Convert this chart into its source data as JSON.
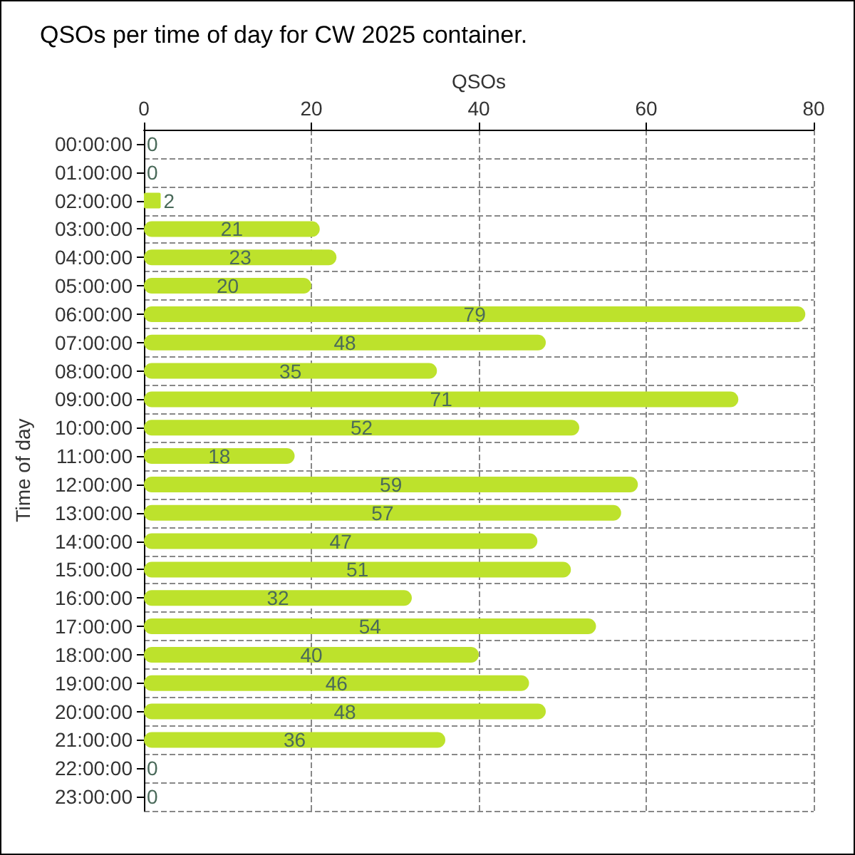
{
  "chart_data": {
    "type": "bar",
    "orientation": "horizontal",
    "title": "QSOs per time of day for CW 2025 container.",
    "xlabel": "QSOs",
    "ylabel": "Time of day",
    "categories": [
      "00:00:00",
      "01:00:00",
      "02:00:00",
      "03:00:00",
      "04:00:00",
      "05:00:00",
      "06:00:00",
      "07:00:00",
      "08:00:00",
      "09:00:00",
      "10:00:00",
      "11:00:00",
      "12:00:00",
      "13:00:00",
      "14:00:00",
      "15:00:00",
      "16:00:00",
      "17:00:00",
      "18:00:00",
      "19:00:00",
      "20:00:00",
      "21:00:00",
      "22:00:00",
      "23:00:00"
    ],
    "values": [
      0,
      0,
      2,
      21,
      23,
      20,
      79,
      48,
      35,
      71,
      52,
      18,
      59,
      57,
      47,
      51,
      32,
      54,
      40,
      46,
      48,
      36,
      0,
      0
    ],
    "color": "#bde22c",
    "xlim": [
      0,
      80
    ],
    "xticks": [
      0,
      20,
      40,
      60,
      80
    ],
    "grid": true,
    "data_labels": true
  }
}
